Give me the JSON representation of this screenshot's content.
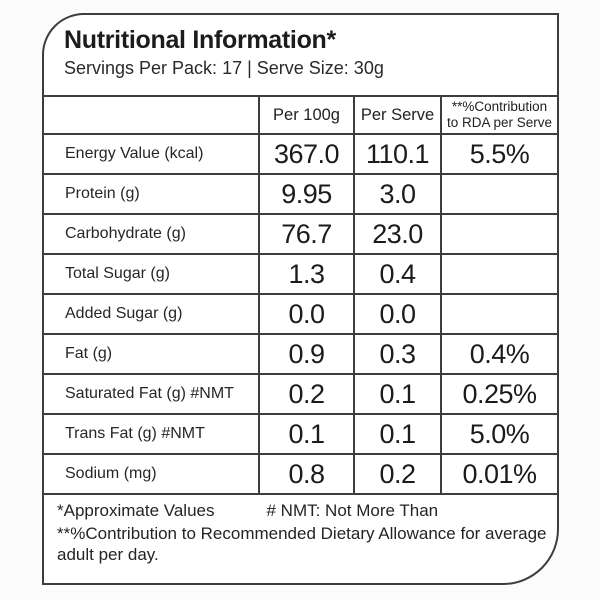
{
  "label": {
    "title": "Nutritional Information*",
    "subtitle": "Servings Per Pack: 17 | Serve Size: 30g"
  },
  "table": {
    "headers": {
      "nutrient": "",
      "per_100g": "Per 100g",
      "per_serve": "Per Serve",
      "rda_line1": "**%Contribution",
      "rda_line2": "to RDA per Serve"
    },
    "rows": [
      {
        "label": "Energy Value (kcal)",
        "per_100g": "367.0",
        "per_serve": "110.1",
        "rda": "5.5%"
      },
      {
        "label": "Protein (g)",
        "per_100g": "9.95",
        "per_serve": "3.0",
        "rda": ""
      },
      {
        "label": "Carbohydrate (g)",
        "per_100g": "76.7",
        "per_serve": "23.0",
        "rda": ""
      },
      {
        "label": "Total Sugar (g)",
        "per_100g": "1.3",
        "per_serve": "0.4",
        "rda": ""
      },
      {
        "label": "Added Sugar (g)",
        "per_100g": "0.0",
        "per_serve": "0.0",
        "rda": ""
      },
      {
        "label": "Fat (g)",
        "per_100g": "0.9",
        "per_serve": "0.3",
        "rda": "0.4%"
      },
      {
        "label": "Saturated Fat (g) #NMT",
        "per_100g": "0.2",
        "per_serve": "0.1",
        "rda": "0.25%"
      },
      {
        "label": "Trans Fat (g) #NMT",
        "per_100g": "0.1",
        "per_serve": "0.1",
        "rda": "5.0%"
      },
      {
        "label": "Sodium (mg)",
        "per_100g": "0.8",
        "per_serve": "0.2",
        "rda": "0.01%"
      }
    ]
  },
  "footnotes": {
    "approximate": "*Approximate Values",
    "nmt": "# NMT: Not More Than",
    "rda_note": "**%Contribution to Recommended Dietary Allowance for average adult per day."
  },
  "colors": {
    "ink": "#1b1b1b",
    "border": "#3d3d3d",
    "label_background": "#ffffff",
    "page_background": "#fbfbfb"
  }
}
